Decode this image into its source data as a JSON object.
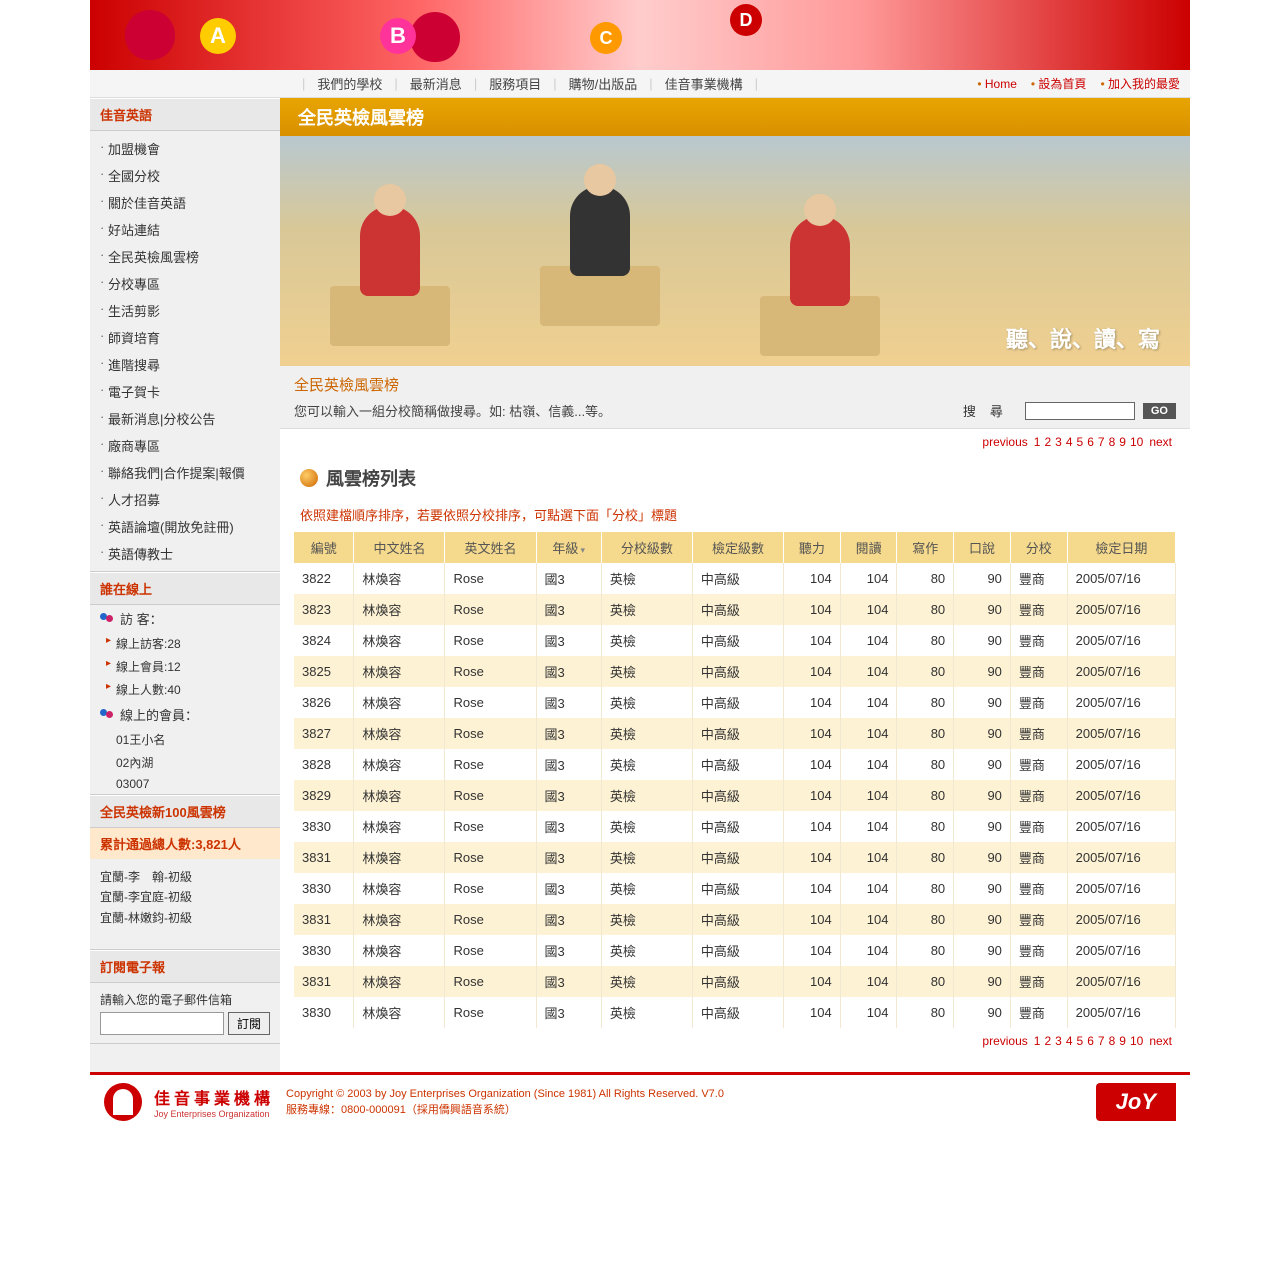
{
  "nav": {
    "items": [
      "我們的學校",
      "最新消息",
      "服務項目",
      "購物/出版品",
      "佳音事業機構"
    ],
    "right": [
      "Home",
      "設為首頁",
      "加入我的最愛"
    ]
  },
  "sidebar": {
    "block1": {
      "title": "佳音英語",
      "items": [
        "加盟機會",
        "全國分校",
        "關於佳音英語",
        "好站連結",
        "全民英檢風雲榜",
        "分校專區",
        "生活剪影",
        "師資培育",
        "進階搜尋",
        "電子賀卡",
        "最新消息|分校公告",
        "廠商專區",
        "聯絡我們|合作提案|報價",
        "人才招募",
        "英語論壇(開放免註冊)",
        "英語傳教士"
      ]
    },
    "block2": {
      "title": "誰在線上",
      "guest_label": "訪 客：",
      "rows": [
        "線上訪客:28",
        "線上會員:12",
        "線上人數:40"
      ],
      "member_label": "線上的會員：",
      "members": [
        "01王小名",
        "02內湖",
        "03007"
      ]
    },
    "block3": {
      "title": "全民英檢新100風雲榜",
      "summary": "累計通過總人數:3,821人",
      "items": [
        "宜蘭-李　翰-初級",
        "宜蘭-李宜庭-初級",
        "宜蘭-林嫩鈞-初級"
      ]
    },
    "block4": {
      "title": "訂閱電子報",
      "label": "請輸入您的電子郵件信箱",
      "btn": "訂閱"
    }
  },
  "main": {
    "title_bar": "全民英檢風雲榜",
    "hero_text": "聽、說、讀、寫",
    "sub_title": "全民英檢風雲榜",
    "sub_desc": "您可以輸入一組分校簡稱做搜尋。如: 枯嶺、信義...等。",
    "search_label": "搜尋",
    "go": "GO",
    "section_title": "風雲榜列表",
    "sort_note": "依照建檔順序排序，若要依照分校排序，可點選下面「分校」標題",
    "pager": {
      "prev": "previous",
      "pages": [
        "1",
        "2",
        "3",
        "4",
        "5",
        "6",
        "7",
        "8",
        "9",
        "10"
      ],
      "next": "next"
    },
    "table": {
      "columns": [
        "編號",
        "中文姓名",
        "英文姓名",
        "年級",
        "分校級數",
        "檢定級數",
        "聽力",
        "閱讀",
        "寫作",
        "口說",
        "分校",
        "檢定日期"
      ],
      "sortable_idx": 3,
      "rows": [
        [
          "3822",
          "林煥容",
          "Rose",
          "國3",
          "英檢",
          "中高級",
          "104",
          "104",
          "80",
          "90",
          "豐商",
          "2005/07/16"
        ],
        [
          "3823",
          "林煥容",
          "Rose",
          "國3",
          "英檢",
          "中高級",
          "104",
          "104",
          "80",
          "90",
          "豐商",
          "2005/07/16"
        ],
        [
          "3824",
          "林煥容",
          "Rose",
          "國3",
          "英檢",
          "中高級",
          "104",
          "104",
          "80",
          "90",
          "豐商",
          "2005/07/16"
        ],
        [
          "3825",
          "林煥容",
          "Rose",
          "國3",
          "英檢",
          "中高級",
          "104",
          "104",
          "80",
          "90",
          "豐商",
          "2005/07/16"
        ],
        [
          "3826",
          "林煥容",
          "Rose",
          "國3",
          "英檢",
          "中高級",
          "104",
          "104",
          "80",
          "90",
          "豐商",
          "2005/07/16"
        ],
        [
          "3827",
          "林煥容",
          "Rose",
          "國3",
          "英檢",
          "中高級",
          "104",
          "104",
          "80",
          "90",
          "豐商",
          "2005/07/16"
        ],
        [
          "3828",
          "林煥容",
          "Rose",
          "國3",
          "英檢",
          "中高級",
          "104",
          "104",
          "80",
          "90",
          "豐商",
          "2005/07/16"
        ],
        [
          "3829",
          "林煥容",
          "Rose",
          "國3",
          "英檢",
          "中高級",
          "104",
          "104",
          "80",
          "90",
          "豐商",
          "2005/07/16"
        ],
        [
          "3830",
          "林煥容",
          "Rose",
          "國3",
          "英檢",
          "中高級",
          "104",
          "104",
          "80",
          "90",
          "豐商",
          "2005/07/16"
        ],
        [
          "3831",
          "林煥容",
          "Rose",
          "國3",
          "英檢",
          "中高級",
          "104",
          "104",
          "80",
          "90",
          "豐商",
          "2005/07/16"
        ],
        [
          "3830",
          "林煥容",
          "Rose",
          "國3",
          "英檢",
          "中高級",
          "104",
          "104",
          "80",
          "90",
          "豐商",
          "2005/07/16"
        ],
        [
          "3831",
          "林煥容",
          "Rose",
          "國3",
          "英檢",
          "中高級",
          "104",
          "104",
          "80",
          "90",
          "豐商",
          "2005/07/16"
        ],
        [
          "3830",
          "林煥容",
          "Rose",
          "國3",
          "英檢",
          "中高級",
          "104",
          "104",
          "80",
          "90",
          "豐商",
          "2005/07/16"
        ],
        [
          "3831",
          "林煥容",
          "Rose",
          "國3",
          "英檢",
          "中高級",
          "104",
          "104",
          "80",
          "90",
          "豐商",
          "2005/07/16"
        ],
        [
          "3830",
          "林煥容",
          "Rose",
          "國3",
          "英檢",
          "中高級",
          "104",
          "104",
          "80",
          "90",
          "豐商",
          "2005/07/16"
        ]
      ],
      "numeric_cols": [
        6,
        7,
        8,
        9
      ]
    }
  },
  "footer": {
    "brand_cn": "佳音事業機構",
    "brand_en": "Joy Enterprises Organization",
    "copyright": "Copyright © 2003 by Joy Enterprises Organization (Since 1981) All Rights Reserved. V7.0",
    "hotline": "服務專線：0800-000091（採用僑興語音系統）",
    "joy": "JoY"
  }
}
